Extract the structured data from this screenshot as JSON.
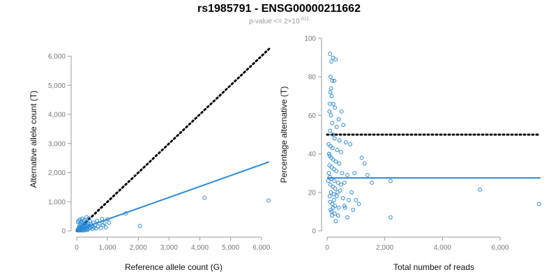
{
  "title": "rs1985791 - ENSG00000211662",
  "subtitle": {
    "prefix": "p-value <= 2×10",
    "exponent": "-311"
  },
  "colors": {
    "points": "#2a8ad8",
    "fit_line": "#2a8ad8",
    "reference_line": "#000000",
    "axis": "#999999",
    "tick_text": "#777777"
  },
  "chart_data": [
    {
      "type": "scatter",
      "xlabel": "Reference allele count (G)",
      "ylabel": "Alternative allele count (T)",
      "xlim": [
        0,
        6300
      ],
      "ylim": [
        0,
        6300
      ],
      "xticks": [
        0,
        1000,
        2000,
        3000,
        4000,
        5000,
        6000
      ],
      "xtick_labels": [
        "0",
        "1,000",
        "2,000",
        "3,000",
        "4,000",
        "5,000",
        "6,000"
      ],
      "yticks": [
        0,
        1000,
        2000,
        3000,
        4000,
        5000,
        6000
      ],
      "ytick_labels": [
        "0",
        "1,000",
        "2,000",
        "3,000",
        "4,000",
        "5,000",
        "6,000"
      ],
      "reference_line": {
        "style": "dotted",
        "from": [
          0,
          0
        ],
        "to": [
          6250,
          6250
        ]
      },
      "fit_line": {
        "from": [
          0,
          20
        ],
        "to": [
          6250,
          2370
        ]
      },
      "points": [
        [
          30,
          40
        ],
        [
          50,
          80
        ],
        [
          60,
          20
        ],
        [
          80,
          150
        ],
        [
          90,
          60
        ],
        [
          100,
          250
        ],
        [
          110,
          30
        ],
        [
          120,
          120
        ],
        [
          130,
          200
        ],
        [
          140,
          90
        ],
        [
          150,
          310
        ],
        [
          160,
          50
        ],
        [
          170,
          180
        ],
        [
          180,
          140
        ],
        [
          190,
          270
        ],
        [
          200,
          100
        ],
        [
          210,
          60
        ],
        [
          220,
          220
        ],
        [
          230,
          330
        ],
        [
          240,
          160
        ],
        [
          250,
          80
        ],
        [
          260,
          200
        ],
        [
          270,
          120
        ],
        [
          280,
          250
        ],
        [
          290,
          40
        ],
        [
          300,
          300
        ],
        [
          310,
          170
        ],
        [
          320,
          90
        ],
        [
          330,
          210
        ],
        [
          340,
          140
        ],
        [
          350,
          60
        ],
        [
          370,
          260
        ],
        [
          390,
          110
        ],
        [
          410,
          180
        ],
        [
          430,
          330
        ],
        [
          450,
          90
        ],
        [
          470,
          220
        ],
        [
          490,
          150
        ],
        [
          510,
          60
        ],
        [
          540,
          280
        ],
        [
          570,
          120
        ],
        [
          600,
          200
        ],
        [
          630,
          80
        ],
        [
          660,
          350
        ],
        [
          700,
          150
        ],
        [
          740,
          260
        ],
        [
          780,
          100
        ],
        [
          820,
          410
        ],
        [
          860,
          200
        ],
        [
          900,
          260
        ],
        [
          950,
          120
        ],
        [
          1000,
          400
        ],
        [
          1050,
          280
        ],
        [
          1600,
          600
        ],
        [
          2050,
          170
        ],
        [
          4150,
          1140
        ],
        [
          6230,
          1040
        ],
        [
          40,
          300
        ],
        [
          70,
          350
        ],
        [
          110,
          390
        ],
        [
          180,
          420
        ],
        [
          250,
          370
        ],
        [
          320,
          470
        ],
        [
          390,
          430
        ],
        [
          60,
          10
        ],
        [
          90,
          120
        ],
        [
          200,
          10
        ],
        [
          140,
          15
        ],
        [
          260,
          20
        ],
        [
          350,
          30
        ]
      ]
    },
    {
      "type": "scatter",
      "xlabel": "Total number of reads",
      "ylabel": "Percentage alternative (T)",
      "xlim": [
        0,
        7400
      ],
      "ylim": [
        0,
        100
      ],
      "xticks": [
        0,
        2000,
        4000,
        6000
      ],
      "xtick_labels": [
        "0",
        "2,000",
        "4,000",
        "6,000"
      ],
      "yticks": [
        0,
        20,
        40,
        60,
        80,
        100
      ],
      "ytick_labels": [
        "0",
        "20",
        "40",
        "60",
        "80",
        "100"
      ],
      "reference_line": {
        "style": "dotted",
        "y": 50
      },
      "fit_line": {
        "y": 27.5
      },
      "points": [
        [
          100,
          92
        ],
        [
          150,
          88
        ],
        [
          200,
          90
        ],
        [
          120,
          80
        ],
        [
          180,
          78
        ],
        [
          250,
          78
        ],
        [
          140,
          74
        ],
        [
          300,
          89
        ],
        [
          160,
          70
        ],
        [
          220,
          66
        ],
        [
          90,
          66
        ],
        [
          130,
          60
        ],
        [
          270,
          64
        ],
        [
          400,
          58
        ],
        [
          500,
          62
        ],
        [
          180,
          56
        ],
        [
          330,
          54
        ],
        [
          560,
          55
        ],
        [
          100,
          52
        ],
        [
          200,
          50
        ],
        [
          260,
          48
        ],
        [
          430,
          47
        ],
        [
          650,
          46
        ],
        [
          800,
          45
        ],
        [
          120,
          44
        ],
        [
          190,
          43
        ],
        [
          350,
          42
        ],
        [
          480,
          41
        ],
        [
          70,
          40
        ],
        [
          90,
          39
        ],
        [
          140,
          38
        ],
        [
          210,
          37
        ],
        [
          300,
          36
        ],
        [
          420,
          35
        ],
        [
          1200,
          38
        ],
        [
          1300,
          35
        ],
        [
          80,
          34
        ],
        [
          160,
          33
        ],
        [
          240,
          32
        ],
        [
          320,
          31
        ],
        [
          520,
          30
        ],
        [
          700,
          29
        ],
        [
          1400,
          29
        ],
        [
          90,
          28
        ],
        [
          150,
          27
        ],
        [
          250,
          26
        ],
        [
          380,
          25
        ],
        [
          600,
          25
        ],
        [
          1550,
          25
        ],
        [
          2200,
          26
        ],
        [
          110,
          24
        ],
        [
          200,
          23
        ],
        [
          280,
          22
        ],
        [
          450,
          21
        ],
        [
          850,
          20
        ],
        [
          5300,
          21.5
        ],
        [
          130,
          20
        ],
        [
          230,
          19
        ],
        [
          330,
          18
        ],
        [
          550,
          17
        ],
        [
          750,
          16
        ],
        [
          1000,
          16
        ],
        [
          100,
          15
        ],
        [
          180,
          14
        ],
        [
          270,
          13
        ],
        [
          400,
          12
        ],
        [
          620,
          12
        ],
        [
          900,
          11
        ],
        [
          150,
          10
        ],
        [
          260,
          9
        ],
        [
          380,
          8
        ],
        [
          700,
          7
        ],
        [
          2200,
          7
        ],
        [
          300,
          5
        ],
        [
          7350,
          14
        ],
        [
          120,
          11
        ],
        [
          240,
          16
        ],
        [
          360,
          20
        ],
        [
          480,
          24
        ],
        [
          90,
          18
        ],
        [
          60,
          30
        ],
        [
          50,
          45
        ],
        [
          80,
          62
        ],
        [
          110,
          72
        ],
        [
          40,
          26
        ],
        [
          170,
          8
        ],
        [
          210,
          12
        ],
        [
          600,
          13
        ],
        [
          1100,
          14
        ],
        [
          950,
          30
        ]
      ]
    }
  ]
}
